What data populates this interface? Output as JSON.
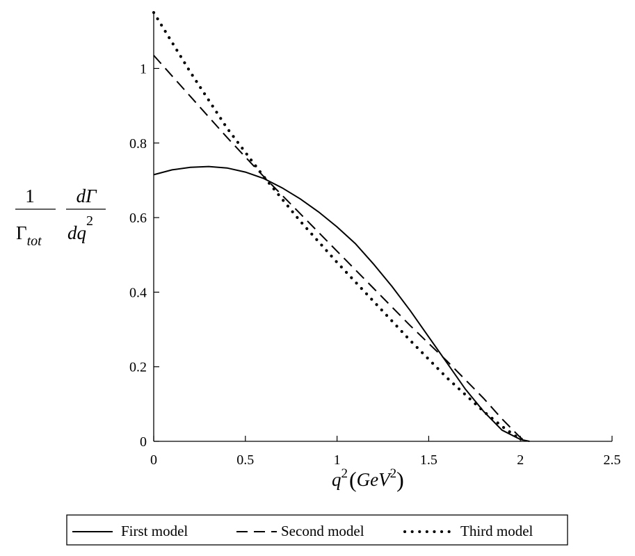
{
  "chart_data": {
    "type": "line",
    "xlabel": {
      "main": "q",
      "exp": "2",
      "unit_open": "(",
      "unit_base": "GeV",
      "unit_exp": "2",
      "unit_close": ")"
    },
    "ylabel": {
      "num_left": "1",
      "den_left": "Γ",
      "den_left_sub": "tot",
      "num_right": "dΓ",
      "den_right": "dq",
      "den_right_exp": "2"
    },
    "xlim": [
      0,
      2.5
    ],
    "ylim": [
      0,
      1.15
    ],
    "xticks": [
      0,
      0.5,
      1,
      1.5,
      2,
      2.5
    ],
    "xtick_labels": [
      "0",
      "0.5",
      "1",
      "1.5",
      "2",
      "2.5"
    ],
    "yticks": [
      0,
      0.2,
      0.4,
      0.6,
      0.8,
      1
    ],
    "ytick_labels": [
      "0",
      "0.2",
      "0.4",
      "0.6",
      "0.8",
      "1"
    ],
    "grid": false,
    "legend_position": "bottom",
    "series": [
      {
        "name": "First model",
        "style": "solid",
        "x": [
          0,
          0.1,
          0.2,
          0.3,
          0.4,
          0.5,
          0.6,
          0.7,
          0.8,
          0.9,
          1.0,
          1.1,
          1.2,
          1.3,
          1.4,
          1.5,
          1.6,
          1.7,
          1.8,
          1.9,
          2.0,
          2.05
        ],
        "y": [
          0.715,
          0.728,
          0.735,
          0.737,
          0.733,
          0.722,
          0.705,
          0.68,
          0.65,
          0.615,
          0.575,
          0.53,
          0.475,
          0.415,
          0.35,
          0.28,
          0.21,
          0.14,
          0.08,
          0.03,
          0.005,
          0
        ]
      },
      {
        "name": "Second model",
        "style": "dashed",
        "x": [
          0,
          0.2,
          0.4,
          0.6,
          0.8,
          1.0,
          1.2,
          1.4,
          1.6,
          1.8,
          1.9,
          2.0,
          2.03
        ],
        "y": [
          1.035,
          0.925,
          0.815,
          0.71,
          0.61,
          0.51,
          0.41,
          0.31,
          0.215,
          0.115,
          0.06,
          0.01,
          0
        ]
      },
      {
        "name": "Third model",
        "style": "dotted",
        "x": [
          0,
          0.2,
          0.4,
          0.6,
          0.8,
          1.0,
          1.2,
          1.4,
          1.6,
          1.8,
          1.9,
          2.0
        ],
        "y": [
          1.15,
          0.99,
          0.84,
          0.71,
          0.59,
          0.48,
          0.375,
          0.27,
          0.17,
          0.08,
          0.04,
          0.005
        ]
      }
    ]
  }
}
